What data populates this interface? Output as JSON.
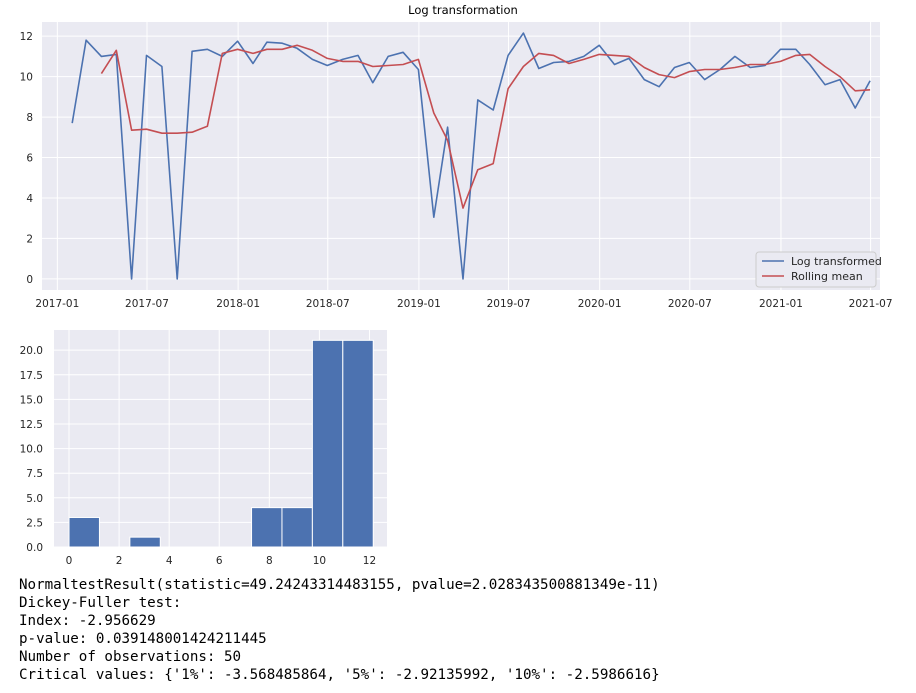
{
  "chart_data": [
    {
      "type": "line",
      "title": "Log transformation",
      "xlabel": "",
      "ylabel": "",
      "x_tick_labels": [
        "2017-01",
        "2017-07",
        "2018-01",
        "2018-07",
        "2019-01",
        "2019-07",
        "2020-01",
        "2020-07",
        "2021-01",
        "2021-07"
      ],
      "y_ticks": [
        0,
        2,
        4,
        6,
        8,
        10,
        12
      ],
      "ylim": [
        -0.55,
        12.7
      ],
      "xlim": [
        "2016-12-01",
        "2021-07-20"
      ],
      "grid": true,
      "legend_position": "lower right",
      "x": [
        "2017-01-31",
        "2017-02-28",
        "2017-03-31",
        "2017-04-30",
        "2017-05-31",
        "2017-06-30",
        "2017-07-31",
        "2017-08-31",
        "2017-09-30",
        "2017-10-31",
        "2017-11-30",
        "2017-12-31",
        "2018-01-31",
        "2018-02-28",
        "2018-03-31",
        "2018-04-30",
        "2018-05-31",
        "2018-06-30",
        "2018-07-31",
        "2018-08-31",
        "2018-09-30",
        "2018-10-31",
        "2018-11-30",
        "2018-12-31",
        "2019-01-31",
        "2019-02-28",
        "2019-03-31",
        "2019-04-30",
        "2019-05-31",
        "2019-06-30",
        "2019-07-31",
        "2019-08-31",
        "2019-09-30",
        "2019-10-31",
        "2019-11-30",
        "2019-12-31",
        "2020-01-31",
        "2020-02-29",
        "2020-03-31",
        "2020-04-30",
        "2020-05-31",
        "2020-06-30",
        "2020-07-31",
        "2020-08-31",
        "2020-09-30",
        "2020-10-31",
        "2020-11-30",
        "2020-12-31",
        "2021-01-31",
        "2021-02-28",
        "2021-03-31",
        "2021-04-30",
        "2021-05-31",
        "2021-06-30",
        "2021-07-31"
      ],
      "series": [
        {
          "name": "Log transformed",
          "color": "#4c72b0",
          "values": [
            7.7,
            11.8,
            11.0,
            11.1,
            0.0,
            11.05,
            10.5,
            0.0,
            11.25,
            11.35,
            11.0,
            11.75,
            10.65,
            11.7,
            11.65,
            11.4,
            10.85,
            10.55,
            10.85,
            11.05,
            9.7,
            11.0,
            11.2,
            10.35,
            3.05,
            7.5,
            0.0,
            8.85,
            8.35,
            11.05,
            12.15,
            10.4,
            10.7,
            10.75,
            11.0,
            11.55,
            10.6,
            10.9,
            9.85,
            9.5,
            10.45,
            10.7,
            9.85,
            10.35,
            11.0,
            10.45,
            10.55,
            11.35,
            11.35,
            10.6,
            9.6,
            9.85,
            8.45,
            9.8,
            null
          ]
        },
        {
          "name": "Rolling mean",
          "color": "#c44e52",
          "values": [
            null,
            null,
            10.15,
            11.3,
            7.35,
            7.4,
            7.2,
            7.2,
            7.25,
            7.55,
            11.15,
            11.35,
            11.15,
            11.35,
            11.35,
            11.55,
            11.3,
            10.9,
            10.75,
            10.75,
            10.5,
            10.55,
            10.6,
            10.85,
            8.2,
            6.85,
            3.5,
            5.4,
            5.7,
            9.4,
            10.5,
            11.15,
            11.05,
            10.65,
            10.85,
            11.1,
            11.05,
            11.0,
            10.45,
            10.1,
            9.95,
            10.25,
            10.35,
            10.35,
            10.45,
            10.6,
            10.6,
            10.75,
            11.05,
            11.1,
            10.5,
            10.0,
            9.3,
            9.35,
            null
          ]
        }
      ]
    },
    {
      "type": "bar",
      "title": "",
      "xlabel": "",
      "ylabel": "",
      "x_ticks": [
        0,
        2,
        4,
        6,
        8,
        10,
        12
      ],
      "y_ticks": [
        0.0,
        2.5,
        5.0,
        7.5,
        10.0,
        12.5,
        15.0,
        17.5,
        20.0
      ],
      "y_tick_labels": [
        "0.0",
        "2.5",
        "5.0",
        "7.5",
        "10.0",
        "12.5",
        "15.0",
        "17.5",
        "20.0"
      ],
      "xlim": [
        -0.6,
        12.7
      ],
      "ylim": [
        0,
        22.05
      ],
      "grid": true,
      "bar_color": "#4c72b0",
      "bin_edges": [
        0.0,
        1.215,
        2.43,
        3.645,
        4.86,
        6.075,
        7.29,
        8.505,
        9.72,
        10.935,
        12.15
      ],
      "values": [
        3,
        0,
        1,
        0,
        0,
        0,
        4,
        4,
        21,
        21
      ]
    }
  ],
  "console": {
    "lines": [
      "NormaltestResult(statistic=49.24243314483155, pvalue=2.028343500881349e-11)",
      "Dickey-Fuller test:",
      "Index: -2.956629",
      "p-value: 0.039148001424211445",
      "Number of observations: 50",
      "Critical values: {'1%': -3.568485864, '5%': -2.92135992, '10%': -2.5986616}"
    ]
  }
}
